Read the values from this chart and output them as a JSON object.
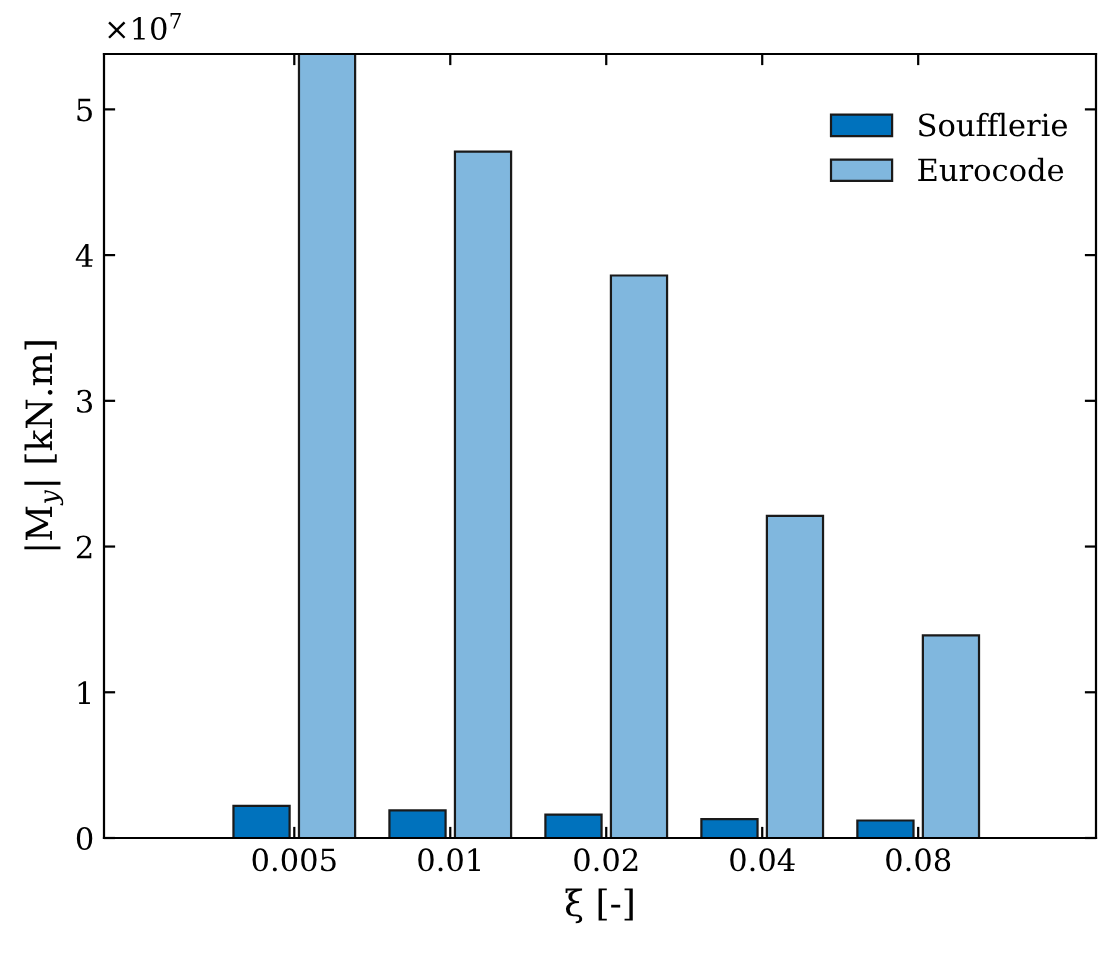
{
  "chart_data": {
    "type": "bar",
    "categories": [
      "0.005",
      "0.01",
      "0.02",
      "0.04",
      "0.08"
    ],
    "series": [
      {
        "name": "Soufflerie",
        "color": "#0072bd",
        "values": [
          0.22,
          0.19,
          0.16,
          0.13,
          0.12
        ]
      },
      {
        "name": "Eurocode",
        "color": "#80b7de",
        "values": [
          5.38,
          4.71,
          3.86,
          2.21,
          1.39
        ]
      }
    ],
    "xlabel": "ξ [-]",
    "ylabel": "|M$_{y}$| [kN.m]",
    "ylim": [
      0,
      5.38
    ],
    "yticks": [
      0,
      1,
      2,
      3,
      4,
      5
    ],
    "annotations": [
      "×10$^{7}$"
    ],
    "legend": "top right",
    "grid": false
  }
}
